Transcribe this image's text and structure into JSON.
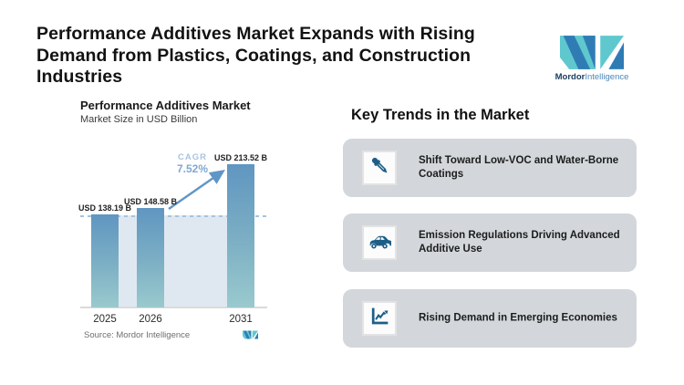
{
  "header": {
    "title_lines": [
      "Performance Additives Market Expands with Rising",
      "Demand from Plastics, Coatings, and Construction",
      "Industries"
    ],
    "brand": {
      "name_bold": "Mordor",
      "name_light": "Intelligence"
    }
  },
  "chart": {
    "title": "Performance Additives Market",
    "subtitle": "Market Size in USD Billion",
    "cagr_label": "CAGR",
    "cagr_value": "7.52%",
    "source": "Source: Mordor Intelligence"
  },
  "chart_data": {
    "type": "bar",
    "categories": [
      "2025",
      "2026",
      "2031"
    ],
    "values": [
      138.19,
      148.58,
      213.52
    ],
    "bar_labels": [
      "USD 138.19 B",
      "USD 148.58 B",
      "USD 213.52 B"
    ],
    "title": "Performance Additives Market",
    "ylabel": "Market Size in USD Billion",
    "ylim": [
      0,
      255
    ],
    "grid": false,
    "legend": false,
    "annotations": {
      "cagr_label": "CAGR",
      "cagr_value": "7.52%",
      "dashed_reference_value": 138.19,
      "arrow": "from 2026 bar top to 2031 bar top"
    }
  },
  "trends": {
    "heading": "Key Trends in the Market",
    "cards": [
      {
        "icon": "dropper-icon",
        "text": "Shift Toward Low-VOC and Water-Borne Coatings"
      },
      {
        "icon": "car-icon",
        "text": "Emission Regulations Driving Advanced Additive Use"
      },
      {
        "icon": "trend-chart-icon",
        "text": "Rising Demand in Emerging Economies"
      }
    ]
  },
  "colors": {
    "bar_top": "#6096c1",
    "bar_bottom": "#9ac9ce",
    "band": "#dfe8f1",
    "dashed_line": "#a5c3de",
    "arrow": "#5f96c6",
    "cagr_text": "#7fa8d4",
    "card_bg": "#d3d7db",
    "icon_blue": "#1d5e87",
    "logo_teal": "#5fc8ce",
    "logo_blue": "#2f7cb5"
  }
}
